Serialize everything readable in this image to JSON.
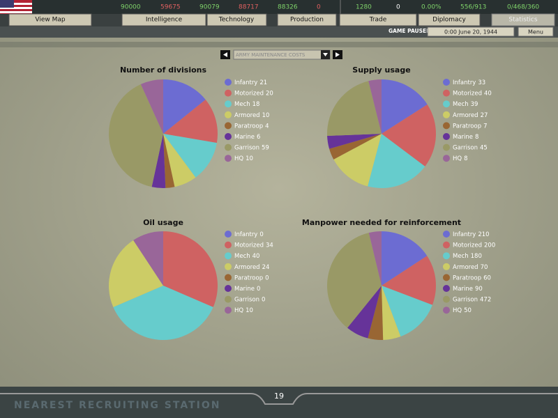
{
  "top_bar": {
    "resources": [
      "90000",
      "59675",
      "90079",
      "88717",
      "88326",
      "0"
    ],
    "stats": [
      "1280",
      "0",
      "0.00%",
      "556/913",
      "0/468/360"
    ],
    "tabs": [
      "View Map",
      "Intelligence",
      "Technology",
      "Production",
      "Trade",
      "Diplomacy",
      "Statistics"
    ],
    "status": "GAME PAUSED",
    "date": "0:00 June 20, 1944",
    "menu": "Menu"
  },
  "selector": "ARMY MAINTENANCE COSTS",
  "chart_data": [
    {
      "type": "pie",
      "title": "Number of divisions",
      "categories": [
        "Infantry",
        "Motorized",
        "Mech",
        "Armored",
        "Paratroop",
        "Marine",
        "Garrison",
        "HQ"
      ],
      "values": [
        21,
        20,
        18,
        10,
        4,
        6,
        59,
        10
      ],
      "colors": [
        "#6c6cd2",
        "#cf6262",
        "#66cccc",
        "#cccc66",
        "#996633",
        "#663399",
        "#999966",
        "#996699"
      ]
    },
    {
      "type": "pie",
      "title": "Supply usage",
      "categories": [
        "Infantry",
        "Motorized",
        "Mech",
        "Armored",
        "Paratroop",
        "Marine",
        "Garrison",
        "HQ"
      ],
      "values": [
        33,
        40,
        39,
        27,
        7,
        8,
        45,
        8
      ],
      "colors": [
        "#6c6cd2",
        "#cf6262",
        "#66cccc",
        "#cccc66",
        "#996633",
        "#663399",
        "#999966",
        "#996699"
      ]
    },
    {
      "type": "pie",
      "title": "Oil usage",
      "categories": [
        "Infantry",
        "Motorized",
        "Mech",
        "Armored",
        "Paratroop",
        "Marine",
        "Garrison",
        "HQ"
      ],
      "values": [
        0,
        34,
        40,
        24,
        0,
        0,
        0,
        10
      ],
      "colors": [
        "#6c6cd2",
        "#cf6262",
        "#66cccc",
        "#cccc66",
        "#996633",
        "#663399",
        "#999966",
        "#996699"
      ]
    },
    {
      "type": "pie",
      "title": "Manpower needed for reinforcement",
      "categories": [
        "Infantry",
        "Motorized",
        "Mech",
        "Armored",
        "Paratroop",
        "Marine",
        "Garrison",
        "HQ"
      ],
      "values": [
        210,
        200,
        180,
        70,
        60,
        90,
        472,
        50
      ],
      "colors": [
        "#6c6cd2",
        "#cf6262",
        "#66cccc",
        "#cccc66",
        "#996633",
        "#663399",
        "#999966",
        "#996699"
      ]
    }
  ],
  "footer": {
    "page": "19",
    "caption": "NEAREST RECRUITING STATION"
  }
}
